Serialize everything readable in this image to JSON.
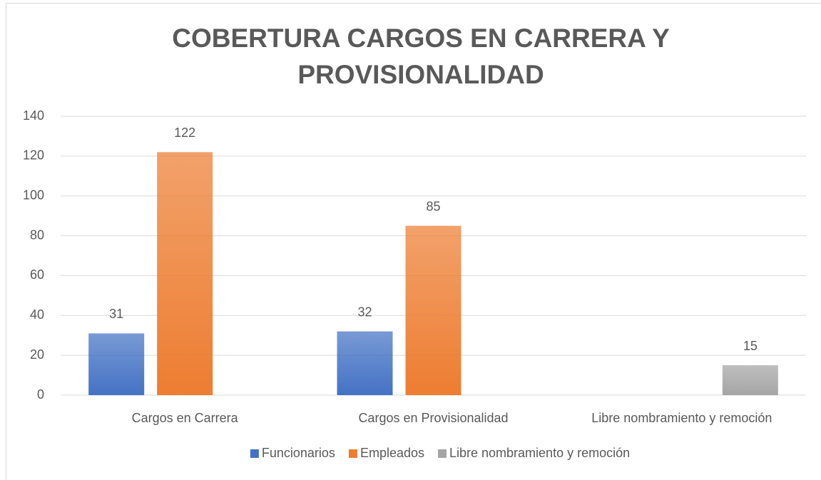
{
  "chart_data": {
    "type": "bar",
    "title": [
      "COBERTURA CARGOS EN CARRERA Y",
      "PROVISIONALIDAD"
    ],
    "categories": [
      "Cargos en Carrera",
      "Cargos en Provisionalidad",
      "Libre nombramiento y remoción"
    ],
    "series": [
      {
        "name": "Funcionarios",
        "color": "#4472c4",
        "values": [
          31,
          32,
          null
        ]
      },
      {
        "name": "Empleados",
        "color": "#ed7d31",
        "values": [
          122,
          85,
          null
        ]
      },
      {
        "name": "Libre nombramiento y remoción",
        "color": "#a5a5a5",
        "values": [
          null,
          null,
          15
        ]
      }
    ],
    "ylim": [
      0,
      140
    ],
    "yticks": [
      0,
      20,
      40,
      60,
      80,
      100,
      120,
      140
    ],
    "grid": true,
    "legend": "bottom"
  }
}
